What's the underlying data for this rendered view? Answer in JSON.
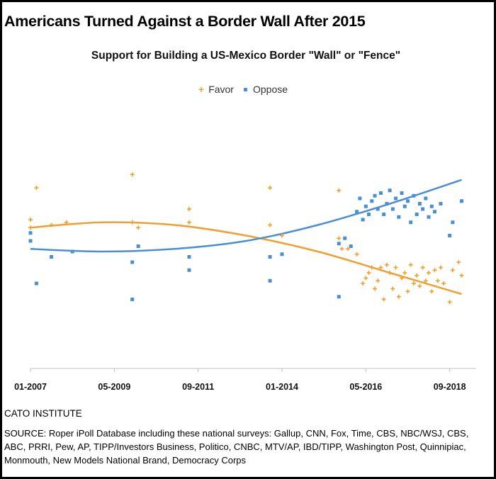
{
  "header": {
    "title": "Americans Turned Against a Border Wall After 2015"
  },
  "footer": {
    "org": "CATO INSTITUTE",
    "source": "SOURCE: Roper iPoll Database including these national surveys: Gallup, CNN, Fox, Time, CBS, NBC/WSJ, CBS, ABC, PRRI, Pew, AP, TIPP/Investors Business, Politico, CNBC, MTV/AP, IBD/TIPP, Washington Post, Quinnipiac, Monmouth, New Models National Brand, Democracy Corps"
  },
  "chart_data": {
    "type": "scatter",
    "title": "Support for Building a US-Mexico Border \"Wall\" or \"Fence\"",
    "xlabel": "",
    "ylabel": "",
    "legend_position": "top-center",
    "grid": false,
    "xlim": [
      "2007-01",
      "2019-03"
    ],
    "ylim": [
      0,
      100
    ],
    "x_ticks": [
      "01-2007",
      "05-2009",
      "09-2011",
      "01-2014",
      "05-2016",
      "09-2018"
    ],
    "colors": {
      "Favor": "#F0A030",
      "Oppose": "#4A8FD4"
    },
    "series": [
      {
        "name": "Favor",
        "marker": "plus",
        "points": [
          [
            "2007-01",
            56
          ],
          [
            "2007-01",
            53
          ],
          [
            "2007-03",
            68
          ],
          [
            "2007-08",
            54
          ],
          [
            "2008-01",
            55
          ],
          [
            "2009-11",
            73
          ],
          [
            "2009-11",
            55
          ],
          [
            "2010-01",
            53
          ],
          [
            "2011-06",
            60
          ],
          [
            "2011-06",
            55
          ],
          [
            "2013-09",
            68
          ],
          [
            "2013-09",
            54
          ],
          [
            "2014-01",
            50
          ],
          [
            "2015-08",
            67
          ],
          [
            "2015-08",
            49
          ],
          [
            "2015-09",
            45
          ],
          [
            "2015-11",
            45
          ],
          [
            "2016-02",
            43
          ],
          [
            "2016-04",
            32
          ],
          [
            "2016-05",
            34
          ],
          [
            "2016-06",
            36
          ],
          [
            "2016-07",
            38
          ],
          [
            "2016-08",
            30
          ],
          [
            "2016-09",
            33
          ],
          [
            "2016-10",
            38
          ],
          [
            "2016-11",
            26
          ],
          [
            "2016-12",
            39
          ],
          [
            "2017-01",
            36
          ],
          [
            "2017-02",
            30
          ],
          [
            "2017-03",
            38
          ],
          [
            "2017-04",
            27
          ],
          [
            "2017-05",
            34
          ],
          [
            "2017-06",
            36
          ],
          [
            "2017-07",
            29
          ],
          [
            "2017-08",
            39
          ],
          [
            "2017-09",
            32
          ],
          [
            "2017-10",
            35
          ],
          [
            "2017-11",
            31
          ],
          [
            "2017-12",
            38
          ],
          [
            "2018-01",
            33
          ],
          [
            "2018-02",
            36
          ],
          [
            "2018-03",
            29
          ],
          [
            "2018-04",
            37
          ],
          [
            "2018-05",
            33
          ],
          [
            "2018-06",
            38
          ],
          [
            "2018-07",
            32
          ],
          [
            "2018-09",
            25
          ],
          [
            "2018-10",
            37
          ],
          [
            "2018-12",
            40
          ],
          [
            "2019-01",
            35
          ]
        ],
        "trend": [
          [
            2007.0,
            53.0
          ],
          [
            2009.0,
            55.0
          ],
          [
            2011.0,
            54.0
          ],
          [
            2013.0,
            50.0
          ],
          [
            2015.0,
            44.0
          ],
          [
            2017.0,
            36.0
          ],
          [
            2019.0,
            28.0
          ]
        ]
      },
      {
        "name": "Oppose",
        "marker": "square",
        "points": [
          [
            "2007-01",
            48
          ],
          [
            "2007-01",
            51
          ],
          [
            "2007-03",
            32
          ],
          [
            "2007-08",
            42
          ],
          [
            "2008-03",
            44
          ],
          [
            "2009-11",
            40
          ],
          [
            "2009-11",
            26
          ],
          [
            "2010-01",
            46
          ],
          [
            "2011-06",
            42
          ],
          [
            "2011-06",
            37
          ],
          [
            "2013-09",
            42
          ],
          [
            "2013-09",
            33
          ],
          [
            "2014-01",
            43
          ],
          [
            "2015-08",
            47
          ],
          [
            "2015-08",
            27
          ],
          [
            "2015-10",
            49
          ],
          [
            "2015-12",
            46
          ],
          [
            "2016-02",
            59
          ],
          [
            "2016-03",
            64
          ],
          [
            "2016-04",
            56
          ],
          [
            "2016-05",
            61
          ],
          [
            "2016-06",
            58
          ],
          [
            "2016-07",
            63
          ],
          [
            "2016-08",
            65
          ],
          [
            "2016-09",
            60
          ],
          [
            "2016-10",
            66
          ],
          [
            "2016-11",
            58
          ],
          [
            "2016-12",
            62
          ],
          [
            "2017-01",
            67
          ],
          [
            "2017-02",
            60
          ],
          [
            "2017-03",
            64
          ],
          [
            "2017-04",
            57
          ],
          [
            "2017-05",
            66
          ],
          [
            "2017-06",
            61
          ],
          [
            "2017-07",
            63
          ],
          [
            "2017-08",
            55
          ],
          [
            "2017-09",
            65
          ],
          [
            "2017-10",
            58
          ],
          [
            "2017-11",
            62
          ],
          [
            "2017-12",
            60
          ],
          [
            "2018-01",
            64
          ],
          [
            "2018-02",
            57
          ],
          [
            "2018-03",
            61
          ],
          [
            "2018-04",
            59
          ],
          [
            "2018-06",
            62
          ],
          [
            "2018-09",
            50
          ],
          [
            "2018-10",
            55
          ],
          [
            "2019-01",
            63
          ]
        ],
        "trend": [
          [
            2007.0,
            45.0
          ],
          [
            2009.0,
            44.0
          ],
          [
            2011.0,
            45.0
          ],
          [
            2013.0,
            48.0
          ],
          [
            2015.0,
            54.0
          ],
          [
            2017.0,
            62.0
          ],
          [
            2019.0,
            71.0
          ]
        ]
      }
    ]
  }
}
